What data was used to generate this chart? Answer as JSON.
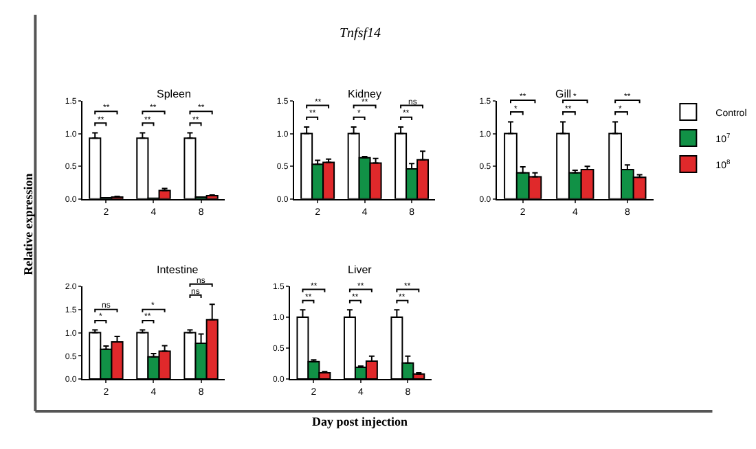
{
  "chart_data": [
    {
      "type": "bar",
      "title": "Spleen",
      "categories": [
        "2",
        "4",
        "8"
      ],
      "ylim": [
        0,
        1.5
      ],
      "yticks": [
        {
          "value": 0,
          "label": "0.0"
        },
        {
          "value": 0.5,
          "label": "0.5"
        },
        {
          "value": 1,
          "label": "1.0"
        },
        {
          "value": 1.5,
          "label": "1.5"
        }
      ],
      "series": [
        {
          "color": "#ffffff",
          "values": [
            0.93,
            0.93,
            0.93
          ],
          "errors": [
            [
              0.93,
              1.01
            ],
            [
              0.93,
              1.01
            ],
            [
              0.93,
              1.01
            ]
          ]
        },
        {
          "color": "#119146",
          "values": [
            0.02,
            0.01,
            0.03
          ]
        },
        {
          "color": "#e0292b",
          "values": [
            0.03,
            0.13,
            0.05
          ],
          "errors": [
            [
              0.03,
              0.04
            ],
            [
              0.13,
              0.16
            ],
            [
              0.05,
              0.06
            ]
          ]
        }
      ],
      "annotations": [
        "Tnfsf14",
        "Relative expression",
        "Day post injection",
        "**",
        "**",
        "**",
        "**",
        "**",
        "**"
      ]
    },
    {
      "type": "bar",
      "title": "Kidney",
      "categories": [
        "2",
        "4",
        "8"
      ],
      "ylim": [
        0,
        1.5
      ],
      "yticks": [
        {
          "value": 0,
          "label": "0.0"
        },
        {
          "value": 0.5,
          "label": "0.5"
        },
        {
          "value": 1,
          "label": "1.0"
        },
        {
          "value": 1.5,
          "label": "1.5"
        }
      ],
      "series": [
        {
          "color": "#ffffff",
          "values": [
            1.0,
            1.0,
            1.0
          ],
          "errors": [
            [
              1.0,
              1.1
            ],
            [
              1.0,
              1.1
            ],
            [
              1.0,
              1.1
            ]
          ]
        },
        {
          "color": "#119146",
          "values": [
            0.53,
            0.63,
            0.46
          ],
          "errors": [
            [
              0.53,
              0.59
            ],
            [
              0.63,
              0.65
            ],
            [
              0.46,
              0.54
            ]
          ]
        },
        {
          "color": "#e0292b",
          "values": [
            0.56,
            0.55,
            0.6
          ],
          "errors": [
            [
              0.56,
              0.61
            ],
            [
              0.55,
              0.62
            ],
            [
              0.6,
              0.73
            ]
          ]
        }
      ],
      "annotations": [
        "**",
        "**",
        "*",
        "**",
        "**",
        "ns"
      ]
    },
    {
      "type": "bar",
      "title": "Gill",
      "categories": [
        "2",
        "4",
        "8"
      ],
      "ylim": [
        0,
        1.5
      ],
      "yticks": [
        {
          "value": 0,
          "label": "0.0"
        },
        {
          "value": 0.5,
          "label": "0.5"
        },
        {
          "value": 1,
          "label": "1.0"
        },
        {
          "value": 1.5,
          "label": "1.5"
        }
      ],
      "legend": "right",
      "series": [
        {
          "name": "Control",
          "color": "#ffffff",
          "values": [
            1.0,
            1.0,
            1.0
          ],
          "errors": [
            [
              1.0,
              1.18
            ],
            [
              1.0,
              1.18
            ],
            [
              1.0,
              1.18
            ]
          ]
        },
        {
          "name": "10$^{7}$",
          "color": "#119146",
          "values": [
            0.4,
            0.4,
            0.45
          ],
          "errors": [
            [
              0.4,
              0.49
            ],
            [
              0.4,
              0.44
            ],
            [
              0.45,
              0.52
            ]
          ]
        },
        {
          "name": "10$^{8}$",
          "color": "#e0292b",
          "values": [
            0.34,
            0.45,
            0.33
          ],
          "errors": [
            [
              0.34,
              0.4
            ],
            [
              0.45,
              0.5
            ],
            [
              0.33,
              0.37
            ]
          ]
        }
      ],
      "annotations": [
        "*",
        "**",
        "**",
        "*",
        "*",
        "**"
      ]
    },
    {
      "type": "bar",
      "title": "Intestine",
      "categories": [
        "2",
        "4",
        "8"
      ],
      "ylim": [
        0,
        2
      ],
      "yticks": [
        {
          "value": 0,
          "label": "0.0"
        },
        {
          "value": 0.5,
          "label": "0.5"
        },
        {
          "value": 1,
          "label": "1.0"
        },
        {
          "value": 1.5,
          "label": "1.5"
        },
        {
          "value": 2,
          "label": "2.0"
        }
      ],
      "series": [
        {
          "color": "#ffffff",
          "values": [
            1.0,
            1.0,
            1.0
          ],
          "errors": [
            [
              1.0,
              1.06
            ],
            [
              1.0,
              1.06
            ],
            [
              1.0,
              1.06
            ]
          ]
        },
        {
          "color": "#119146",
          "values": [
            0.64,
            0.48,
            0.77
          ],
          "errors": [
            [
              0.64,
              0.71
            ],
            [
              0.48,
              0.55
            ],
            [
              0.77,
              0.97
            ]
          ]
        },
        {
          "color": "#e0292b",
          "values": [
            0.8,
            0.6,
            1.28
          ],
          "errors": [
            [
              0.8,
              0.92
            ],
            [
              0.6,
              0.72
            ],
            [
              1.28,
              1.61
            ]
          ]
        }
      ],
      "annotations": [
        "*",
        "ns",
        "**",
        "*",
        "ns",
        "ns"
      ]
    },
    {
      "type": "bar",
      "title": "Liver",
      "categories": [
        "2",
        "4",
        "8"
      ],
      "ylim": [
        0,
        1.5
      ],
      "yticks": [
        {
          "value": 0,
          "label": "0.0"
        },
        {
          "value": 0.5,
          "label": "0.5"
        },
        {
          "value": 1,
          "label": "1.0"
        },
        {
          "value": 1.5,
          "label": "1.5"
        }
      ],
      "series": [
        {
          "color": "#ffffff",
          "values": [
            1.0,
            1.0,
            1.0
          ],
          "errors": [
            [
              1.0,
              1.12
            ],
            [
              1.0,
              1.12
            ],
            [
              1.0,
              1.12
            ]
          ]
        },
        {
          "color": "#119146",
          "values": [
            0.28,
            0.19,
            0.26
          ],
          "errors": [
            [
              0.28,
              0.31
            ],
            [
              0.19,
              0.21
            ],
            [
              0.26,
              0.37
            ]
          ]
        },
        {
          "color": "#e0292b",
          "values": [
            0.1,
            0.29,
            0.08
          ],
          "errors": [
            [
              0.1,
              0.12
            ],
            [
              0.29,
              0.37
            ],
            [
              0.08,
              0.1
            ]
          ]
        }
      ],
      "annotations": [
        "**",
        "**",
        "**",
        "**",
        "**",
        "**"
      ]
    }
  ]
}
